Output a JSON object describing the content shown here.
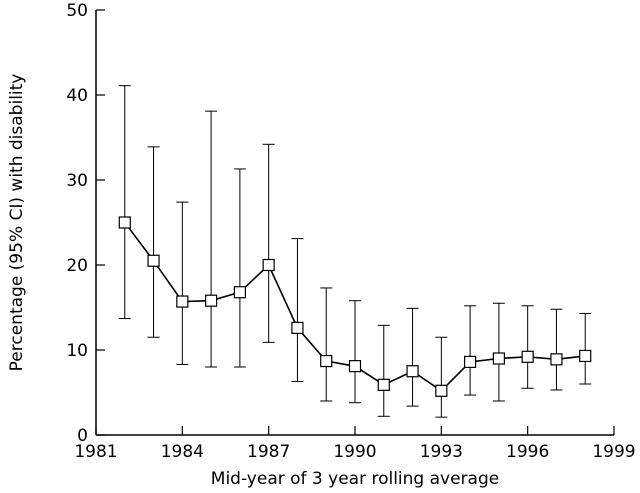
{
  "chart_data": {
    "type": "line",
    "title": "",
    "xlabel": "Mid-year of 3 year rolling average",
    "ylabel": "Percentage (95% CI) with disability",
    "xlim": [
      1981,
      1999
    ],
    "ylim": [
      0,
      50
    ],
    "x_ticks": [
      1981,
      1984,
      1987,
      1990,
      1993,
      1996,
      1999
    ],
    "y_ticks": [
      0,
      10,
      20,
      30,
      40,
      50
    ],
    "grid": false,
    "legend": "none",
    "series": [
      {
        "x": [
          1982,
          1983,
          1984,
          1985,
          1986,
          1987,
          1988,
          1989,
          1990,
          1991,
          1992,
          1993,
          1994,
          1995,
          1996,
          1997,
          1998
        ],
        "values": [
          25.0,
          20.5,
          15.7,
          15.8,
          16.8,
          20.0,
          12.6,
          8.7,
          8.1,
          5.9,
          7.5,
          5.2,
          8.6,
          9.0,
          9.2,
          8.9,
          9.3
        ],
        "ci_lower": [
          13.7,
          11.5,
          8.3,
          8.0,
          8.0,
          10.9,
          6.3,
          4.0,
          3.8,
          2.2,
          3.4,
          2.1,
          4.7,
          4.0,
          5.5,
          5.3,
          6.0
        ],
        "ci_upper": [
          41.1,
          33.9,
          27.4,
          38.1,
          31.3,
          34.2,
          23.1,
          17.3,
          15.8,
          12.9,
          14.9,
          11.5,
          15.2,
          15.5,
          15.2,
          14.8,
          14.3
        ]
      }
    ]
  }
}
